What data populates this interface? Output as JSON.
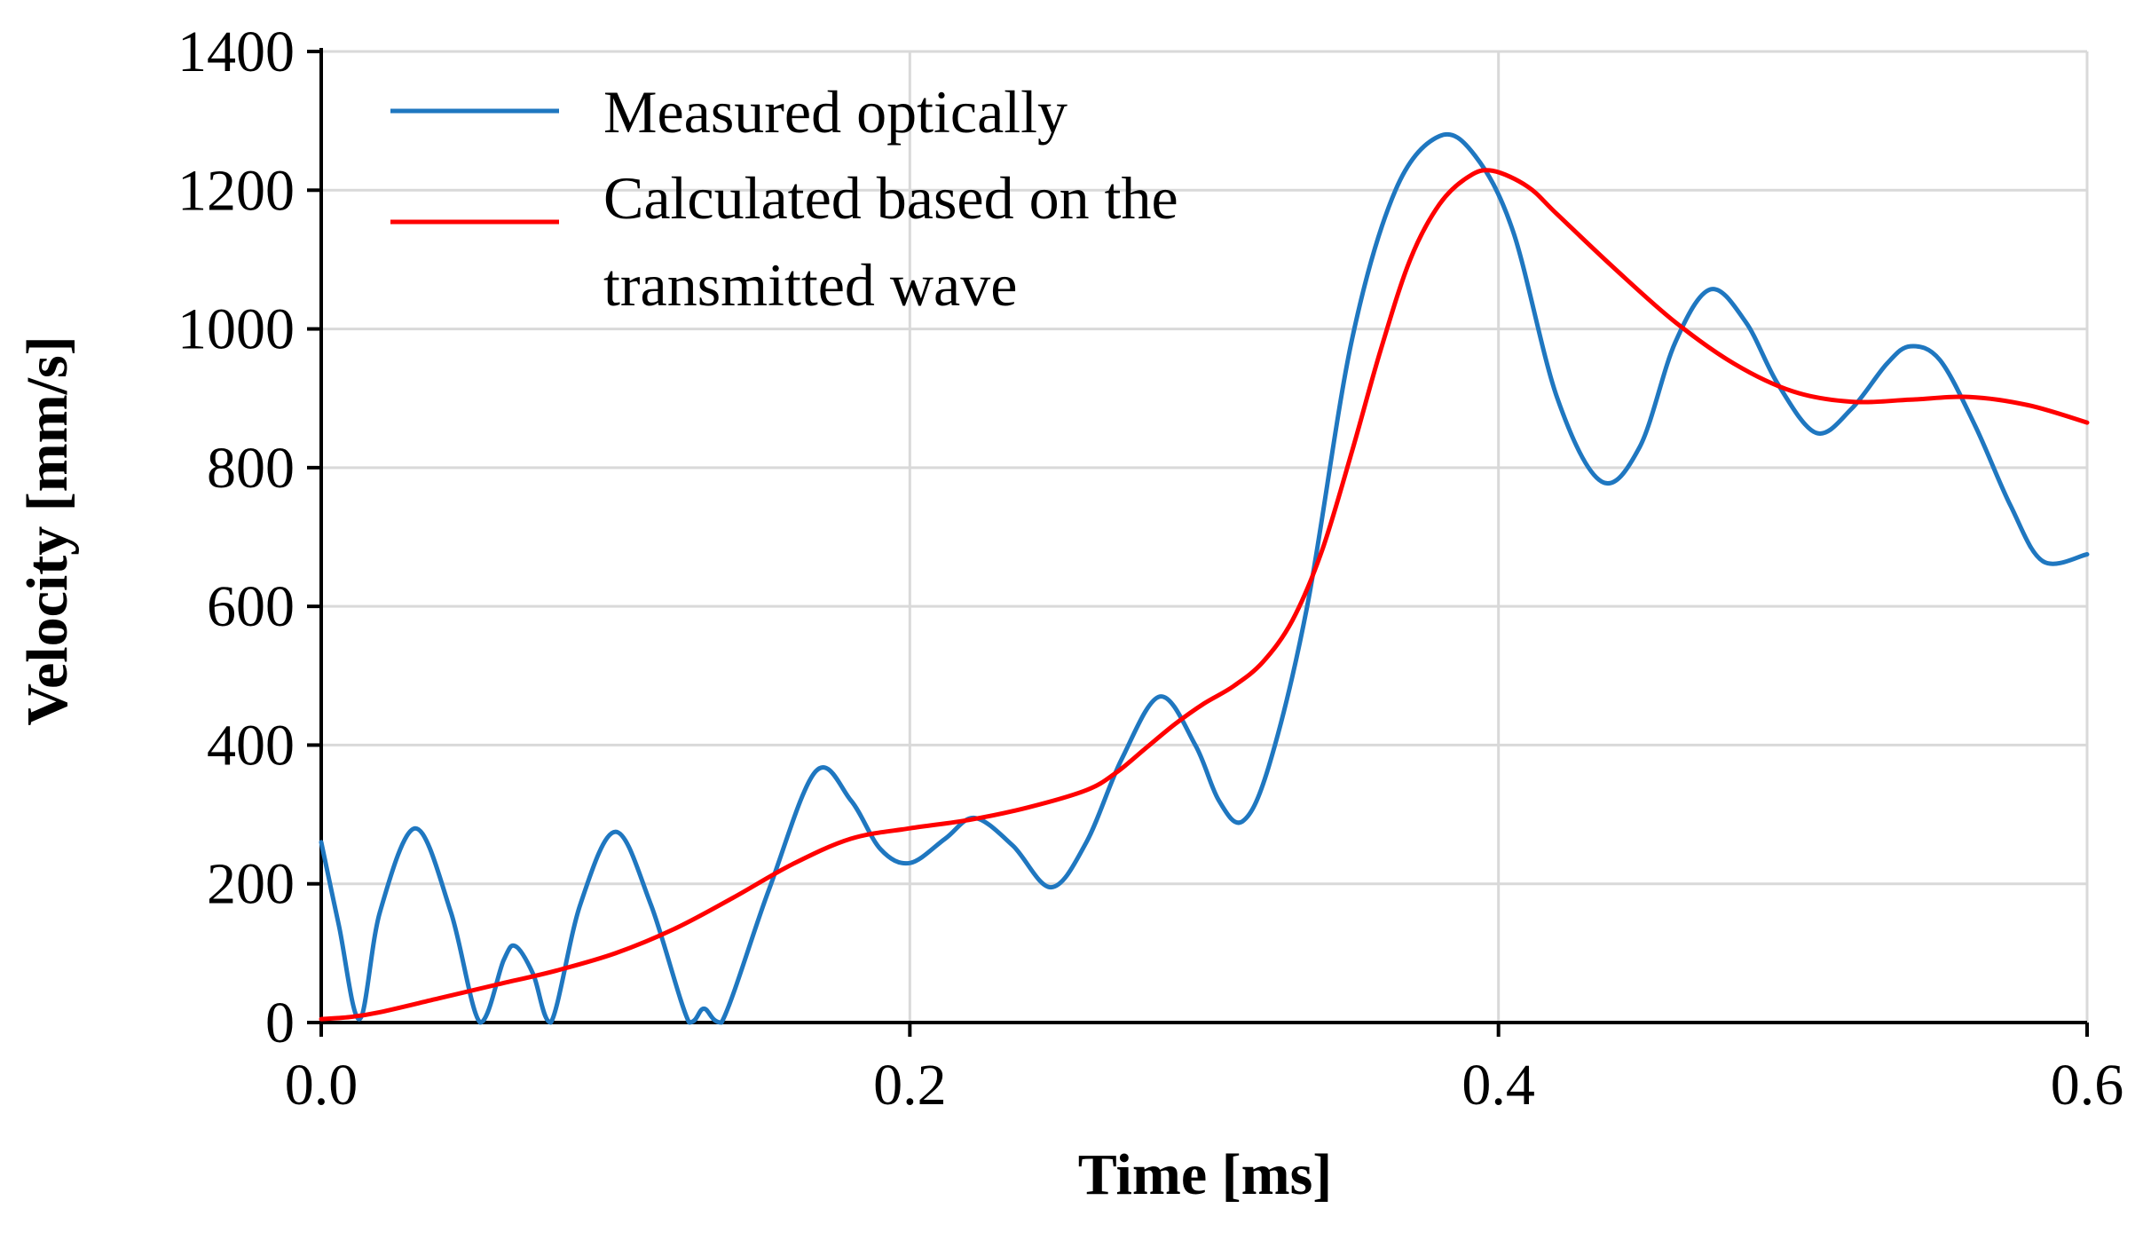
{
  "chart_data": {
    "type": "line",
    "title": "",
    "xlabel": "Time [ms]",
    "ylabel": "Velocity [mm/s]",
    "xlim": [
      0,
      0.6
    ],
    "ylim": [
      0,
      1400
    ],
    "x_ticks": [
      0.0,
      0.2,
      0.4,
      0.6
    ],
    "x_tick_labels": [
      "0.0",
      "0.2",
      "0.4",
      "0.6"
    ],
    "y_ticks": [
      0,
      200,
      400,
      600,
      800,
      1000,
      1200,
      1400
    ],
    "y_tick_labels": [
      "0",
      "200",
      "400",
      "600",
      "800",
      "1000",
      "1200",
      "1400"
    ],
    "grid": true,
    "legend_position": "top-left",
    "series": [
      {
        "name": "Measured optically",
        "legend_lines": [
          "Measured optically"
        ],
        "color": "#1f77c0",
        "points": [
          [
            0.0,
            260
          ],
          [
            0.006,
            140
          ],
          [
            0.013,
            5
          ],
          [
            0.02,
            160
          ],
          [
            0.032,
            280
          ],
          [
            0.044,
            160
          ],
          [
            0.054,
            0
          ],
          [
            0.062,
            90
          ],
          [
            0.066,
            110
          ],
          [
            0.072,
            70
          ],
          [
            0.078,
            0
          ],
          [
            0.088,
            170
          ],
          [
            0.1,
            275
          ],
          [
            0.112,
            170
          ],
          [
            0.125,
            0
          ],
          [
            0.13,
            20
          ],
          [
            0.136,
            0
          ],
          [
            0.152,
            190
          ],
          [
            0.168,
            362
          ],
          [
            0.18,
            320
          ],
          [
            0.19,
            250
          ],
          [
            0.2,
            230
          ],
          [
            0.212,
            265
          ],
          [
            0.222,
            295
          ],
          [
            0.235,
            255
          ],
          [
            0.248,
            195
          ],
          [
            0.26,
            260
          ],
          [
            0.272,
            380
          ],
          [
            0.285,
            470
          ],
          [
            0.297,
            400
          ],
          [
            0.305,
            320
          ],
          [
            0.313,
            290
          ],
          [
            0.322,
            370
          ],
          [
            0.335,
            600
          ],
          [
            0.35,
            980
          ],
          [
            0.365,
            1200
          ],
          [
            0.38,
            1278
          ],
          [
            0.392,
            1250
          ],
          [
            0.405,
            1140
          ],
          [
            0.42,
            900
          ],
          [
            0.435,
            780
          ],
          [
            0.448,
            830
          ],
          [
            0.46,
            980
          ],
          [
            0.472,
            1057
          ],
          [
            0.484,
            1010
          ],
          [
            0.495,
            920
          ],
          [
            0.508,
            850
          ],
          [
            0.52,
            885
          ],
          [
            0.532,
            950
          ],
          [
            0.54,
            975
          ],
          [
            0.55,
            955
          ],
          [
            0.562,
            860
          ],
          [
            0.574,
            745
          ],
          [
            0.585,
            665
          ],
          [
            0.6,
            675
          ]
        ]
      },
      {
        "name": "Calculated based on the transmitted wave",
        "legend_lines": [
          "Calculated based on the",
          "transmitted wave"
        ],
        "color": "#ff0000",
        "points": [
          [
            0.0,
            5
          ],
          [
            0.01,
            8
          ],
          [
            0.02,
            15
          ],
          [
            0.04,
            35
          ],
          [
            0.06,
            55
          ],
          [
            0.08,
            75
          ],
          [
            0.1,
            100
          ],
          [
            0.12,
            135
          ],
          [
            0.14,
            180
          ],
          [
            0.16,
            228
          ],
          [
            0.18,
            265
          ],
          [
            0.2,
            280
          ],
          [
            0.22,
            292
          ],
          [
            0.24,
            310
          ],
          [
            0.26,
            335
          ],
          [
            0.27,
            360
          ],
          [
            0.28,
            395
          ],
          [
            0.29,
            430
          ],
          [
            0.3,
            460
          ],
          [
            0.31,
            485
          ],
          [
            0.32,
            520
          ],
          [
            0.33,
            580
          ],
          [
            0.34,
            680
          ],
          [
            0.35,
            820
          ],
          [
            0.36,
            970
          ],
          [
            0.37,
            1100
          ],
          [
            0.38,
            1180
          ],
          [
            0.39,
            1220
          ],
          [
            0.398,
            1228
          ],
          [
            0.41,
            1205
          ],
          [
            0.42,
            1165
          ],
          [
            0.44,
            1085
          ],
          [
            0.46,
            1010
          ],
          [
            0.48,
            950
          ],
          [
            0.5,
            910
          ],
          [
            0.52,
            895
          ],
          [
            0.54,
            898
          ],
          [
            0.56,
            902
          ],
          [
            0.58,
            890
          ],
          [
            0.6,
            865
          ]
        ]
      }
    ]
  }
}
